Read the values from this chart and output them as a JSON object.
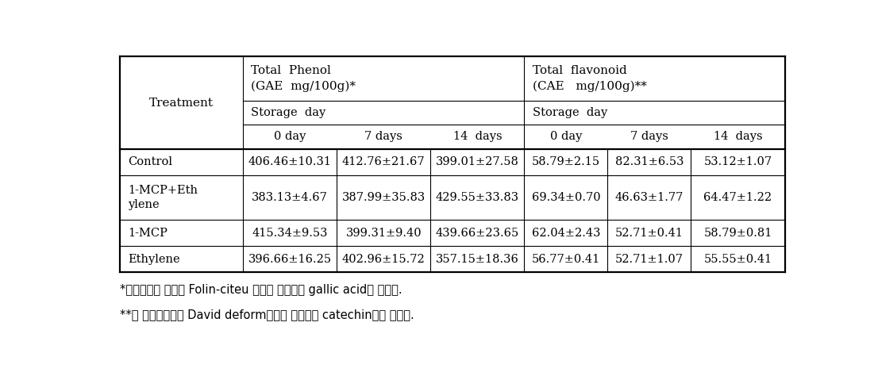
{
  "footnote1": "*총폴리페놀 함량은 Folin-citeu 법으로 측정하여 gallic acid로 정량함.",
  "footnote2": "**총 플라보이드는 David deform법으로 측정하여 catechin으로 정량함.",
  "rows": [
    [
      "Control",
      "406.46±10.31",
      "412.76±21.67",
      "399.01±27.58",
      "58.79±2.15",
      "82.31±6.53",
      "53.12±1.07"
    ],
    [
      "1-MCP+Eth\nylene",
      "383.13±4.67",
      "387.99±35.83",
      "429.55±33.83",
      "69.34±0.70",
      "46.63±1.77",
      "64.47±1.22"
    ],
    [
      "1-MCP",
      "415.34±9.53",
      "399.31±9.40",
      "439.66±23.65",
      "62.04±2.43",
      "52.71±0.41",
      "58.79±0.81"
    ],
    [
      "Ethylene",
      "396.66±16.25",
      "402.96±15.72",
      "357.15±18.36",
      "56.77±0.41",
      "52.71±1.07",
      "55.55±0.41"
    ]
  ],
  "bg_color": "#ffffff",
  "text_color": "#000000",
  "line_color": "#000000",
  "fontsize": 10.5,
  "header_fontsize": 11
}
